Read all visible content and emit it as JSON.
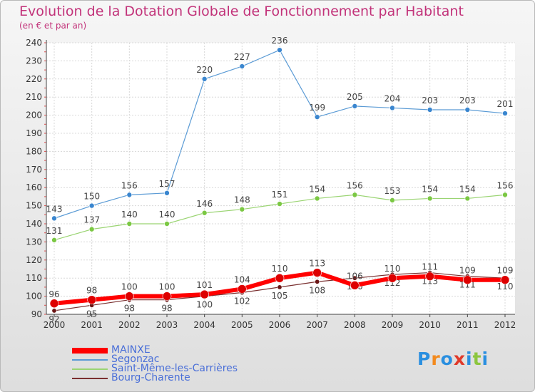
{
  "title": "Evolution de la Dotation Globale de Fonctionnement par Habitant",
  "subtitle": "(en € et par an)",
  "logo": {
    "letters": [
      "P",
      "r",
      "o",
      "x",
      "i",
      "t",
      "i"
    ],
    "colors": [
      "#2a8fe0",
      "#f28a1e",
      "#2a8fe0",
      "#e03a2a",
      "#2a8fe0",
      "#8cc63f",
      "#2a8fe0"
    ]
  },
  "chart_data": {
    "type": "line",
    "x": [
      "2000",
      "2001",
      "2002",
      "2003",
      "2004",
      "2005",
      "2006",
      "2007",
      "2008",
      "2009",
      "2010",
      "2011",
      "2012"
    ],
    "ylim": [
      90,
      240
    ],
    "yticks": [
      90,
      100,
      110,
      120,
      130,
      140,
      150,
      160,
      170,
      180,
      190,
      200,
      210,
      220,
      230,
      240
    ],
    "grid": true,
    "legend_position": "bottom-left",
    "series": [
      {
        "name": "Segonzac",
        "color": "#5b9bd5",
        "marker": "#3a86cf",
        "values": [
          143,
          150,
          156,
          157,
          220,
          227,
          236,
          199,
          205,
          204,
          203,
          203,
          201
        ],
        "labels": [
          "143",
          "150",
          "156",
          "157",
          "220",
          "227",
          "236",
          "199",
          "205",
          "204",
          "203",
          "203",
          "201"
        ]
      },
      {
        "name": "Saint-Même-les-Carrières",
        "color": "#9ad472",
        "marker": "#7bc843",
        "values": [
          131,
          137,
          140,
          140,
          146,
          148,
          151,
          154,
          156,
          153,
          154,
          154,
          156
        ],
        "labels": [
          "131",
          "137",
          "140",
          "140",
          "146",
          "148",
          "151",
          "154",
          "156",
          "153",
          "154",
          "154",
          "156"
        ]
      },
      {
        "name": "Bourg-Charente",
        "color": "#7a3030",
        "marker": "#6a1515",
        "values": [
          92,
          95,
          98,
          98,
          100,
          102,
          105,
          108,
          110,
          112,
          113,
          111,
          110
        ],
        "labels": [
          "92",
          "95",
          "98",
          "98",
          "100",
          "102",
          "105",
          "108",
          "110",
          "112",
          "113",
          "111",
          "110"
        ]
      },
      {
        "name": "MAINXE",
        "color": "#ff0000",
        "marker": "#dd0000",
        "values": [
          96,
          98,
          100,
          100,
          101,
          104,
          110,
          113,
          106,
          110,
          111,
          109,
          109
        ],
        "labels": [
          "96",
          "98",
          "100",
          "100",
          "101",
          "104",
          "110",
          "113",
          "106",
          "110",
          "111",
          "109",
          "109"
        ]
      }
    ],
    "legend_order": [
      "MAINXE",
      "Segonzac",
      "Saint-Même-les-Carrières",
      "Bourg-Charente"
    ]
  }
}
